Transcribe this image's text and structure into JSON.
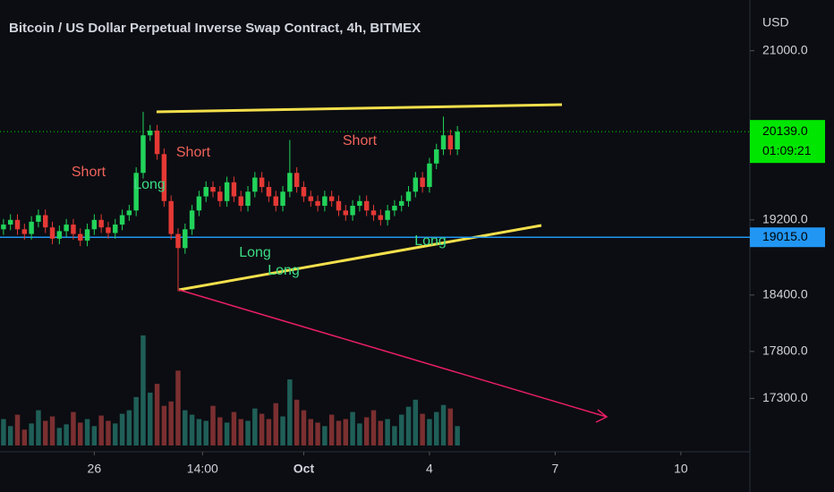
{
  "chart_data": {
    "type": "candlestick",
    "title": "Bitcoin / US Dollar Perpetual Inverse Swap Contract, 4h, BITMEX",
    "currency": "USD",
    "ylim": [
      16780,
      21540
    ],
    "yticks": [
      {
        "value": 21000,
        "label": "21000.0"
      },
      {
        "value": 19200,
        "label": "19200.0"
      },
      {
        "value": 18400,
        "label": "18400.0"
      },
      {
        "value": 17800,
        "label": "17800.0"
      },
      {
        "value": 17300,
        "label": "17300.0"
      }
    ],
    "xlim": [
      -0.5,
      106.5
    ],
    "xticks": [
      {
        "value": 13,
        "label": "26"
      },
      {
        "value": 28.5,
        "label": "14:00"
      },
      {
        "value": 43,
        "label": "Oct"
      },
      {
        "value": 61,
        "label": "4"
      },
      {
        "value": 79,
        "label": "7"
      },
      {
        "value": 97,
        "label": "10"
      }
    ],
    "last_price": {
      "value": 20139,
      "label": "20139.0",
      "countdown": "01:09:21",
      "color": "#00e600"
    },
    "level_line": {
      "value": 19015,
      "label": "19015.0",
      "color": "#2196f3"
    },
    "up_color": "#22d35a",
    "down_color": "#e53935",
    "open": [
      19100,
      19150,
      19200,
      19100,
      19050,
      19180,
      19250,
      19120,
      19000,
      19080,
      19150,
      19050,
      18980,
      19100,
      19200,
      19120,
      19060,
      19150,
      19250,
      19300,
      19700,
      20100,
      20150,
      19900,
      19400,
      19050,
      18900,
      19100,
      19300,
      19450,
      19550,
      19500,
      19400,
      19600,
      19450,
      19350,
      19500,
      19650,
      19550,
      19450,
      19350,
      19500,
      19700,
      19550,
      19450,
      19400,
      19350,
      19450,
      19400,
      19300,
      19250,
      19350,
      19400,
      19300,
      19250,
      19200,
      19300,
      19350,
      19400,
      19500,
      19650,
      19550,
      19800,
      19950,
      20100,
      19950
    ],
    "high": [
      19210,
      19260,
      19260,
      19160,
      19240,
      19310,
      19310,
      19180,
      19140,
      19210,
      19210,
      19110,
      19160,
      19260,
      19260,
      19180,
      19210,
      19310,
      19360,
      19760,
      20350,
      20210,
      20210,
      19960,
      19460,
      19110,
      19160,
      19360,
      19510,
      19610,
      19610,
      19560,
      19660,
      19660,
      19510,
      19560,
      19710,
      19710,
      19610,
      19510,
      19560,
      20050,
      19760,
      19610,
      19510,
      19460,
      19510,
      19510,
      19460,
      19360,
      19410,
      19460,
      19460,
      19360,
      19310,
      19360,
      19410,
      19460,
      19560,
      19710,
      19710,
      19860,
      20010,
      20300,
      20160,
      20199
    ],
    "low": [
      19040,
      19090,
      19040,
      18990,
      18990,
      19120,
      19060,
      18940,
      18940,
      19020,
      18990,
      18920,
      18920,
      19040,
      19060,
      19000,
      19000,
      19090,
      19190,
      19240,
      19640,
      20040,
      19840,
      19340,
      18990,
      18440,
      18840,
      19040,
      19240,
      19390,
      19440,
      19340,
      19340,
      19390,
      19290,
      19290,
      19440,
      19490,
      19390,
      19290,
      19290,
      19440,
      19490,
      19390,
      19340,
      19290,
      19290,
      19340,
      19240,
      19190,
      19190,
      19290,
      19240,
      19190,
      19140,
      19140,
      19240,
      19290,
      19340,
      19440,
      19490,
      19490,
      19740,
      19890,
      19890,
      19890
    ],
    "close": [
      19150,
      19200,
      19100,
      19050,
      19180,
      19250,
      19120,
      19000,
      19080,
      19150,
      19050,
      18980,
      19100,
      19200,
      19120,
      19060,
      19150,
      19250,
      19300,
      19700,
      20100,
      20150,
      19900,
      19400,
      19050,
      18900,
      19100,
      19300,
      19450,
      19550,
      19500,
      19400,
      19600,
      19450,
      19350,
      19500,
      19650,
      19550,
      19450,
      19350,
      19500,
      19700,
      19550,
      19450,
      19400,
      19350,
      19450,
      19400,
      19300,
      19250,
      19350,
      19400,
      19300,
      19250,
      19200,
      19300,
      19350,
      19400,
      19500,
      19650,
      19550,
      19800,
      19950,
      20100,
      19950,
      20139
    ],
    "volume_lim": [
      0,
      130
    ],
    "volume": [
      30,
      22,
      35,
      18,
      25,
      40,
      28,
      33,
      20,
      24,
      38,
      26,
      30,
      22,
      34,
      28,
      25,
      36,
      40,
      55,
      125,
      60,
      70,
      45,
      50,
      85,
      40,
      35,
      30,
      28,
      45,
      32,
      26,
      38,
      30,
      28,
      42,
      36,
      30,
      48,
      33,
      75,
      52,
      40,
      30,
      26,
      22,
      35,
      28,
      30,
      38,
      25,
      32,
      40,
      28,
      30,
      22,
      35,
      44,
      52,
      36,
      30,
      38,
      46,
      42,
      22
    ],
    "annotations": [
      "Short",
      "Short",
      "Short",
      "Long",
      "Long",
      "Long",
      "Long"
    ]
  }
}
